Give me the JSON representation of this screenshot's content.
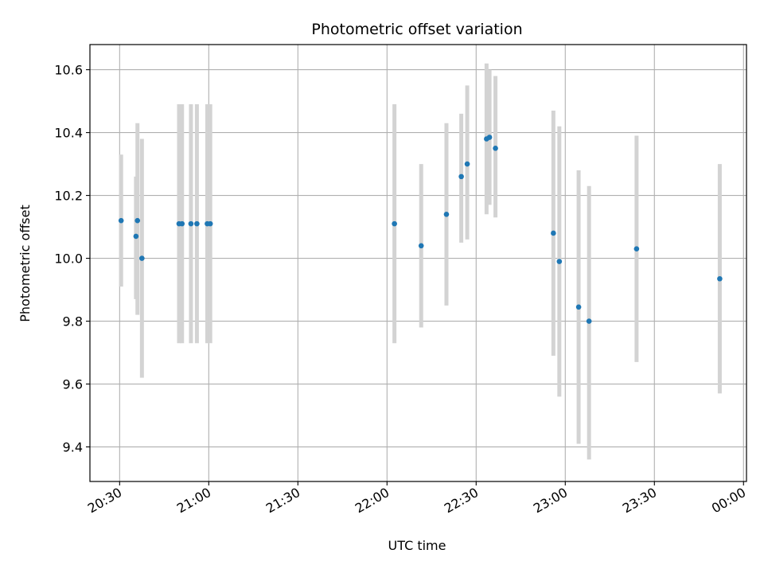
{
  "chart_data": {
    "type": "scatter",
    "title": "Photometric offset variation",
    "xlabel": "UTC time",
    "ylabel": "Photometric offset",
    "x_unit": "UTC time (HH:MM)",
    "xlim": [
      "20:20",
      "00:01"
    ],
    "ylim": [
      9.29,
      10.68
    ],
    "grid": true,
    "x_ticks": [
      "20:30",
      "21:00",
      "21:30",
      "22:00",
      "22:30",
      "23:00",
      "23:30",
      "00:00"
    ],
    "y_ticks": [
      "9.4",
      "9.6",
      "9.8",
      "10.0",
      "10.2",
      "10.4",
      "10.6"
    ],
    "marker_color": "#1f77b4",
    "errorbar_color": "#d3d3d3",
    "points": [
      {
        "x": "20:30:30",
        "y": 10.12,
        "ylow": 9.91,
        "yhigh": 10.33
      },
      {
        "x": "20:35:30",
        "y": 10.07,
        "ylow": 9.87,
        "yhigh": 10.26
      },
      {
        "x": "20:36:00",
        "y": 10.12,
        "ylow": 9.82,
        "yhigh": 10.43
      },
      {
        "x": "20:37:30",
        "y": 10.0,
        "ylow": 9.62,
        "yhigh": 10.38
      },
      {
        "x": "20:50:00",
        "y": 10.11,
        "ylow": 9.73,
        "yhigh": 10.49
      },
      {
        "x": "20:51:00",
        "y": 10.11,
        "ylow": 9.73,
        "yhigh": 10.49
      },
      {
        "x": "20:54:00",
        "y": 10.11,
        "ylow": 9.73,
        "yhigh": 10.49
      },
      {
        "x": "20:56:00",
        "y": 10.11,
        "ylow": 9.73,
        "yhigh": 10.49
      },
      {
        "x": "20:59:30",
        "y": 10.11,
        "ylow": 9.73,
        "yhigh": 10.49
      },
      {
        "x": "21:00:30",
        "y": 10.11,
        "ylow": 9.73,
        "yhigh": 10.49
      },
      {
        "x": "22:02:30",
        "y": 10.11,
        "ylow": 9.73,
        "yhigh": 10.49
      },
      {
        "x": "22:11:30",
        "y": 10.04,
        "ylow": 9.78,
        "yhigh": 10.3
      },
      {
        "x": "22:20:00",
        "y": 10.14,
        "ylow": 9.85,
        "yhigh": 10.43
      },
      {
        "x": "22:25:00",
        "y": 10.26,
        "ylow": 10.05,
        "yhigh": 10.46
      },
      {
        "x": "22:27:00",
        "y": 10.3,
        "ylow": 10.06,
        "yhigh": 10.55
      },
      {
        "x": "22:33:30",
        "y": 10.38,
        "ylow": 10.14,
        "yhigh": 10.62
      },
      {
        "x": "22:34:30",
        "y": 10.385,
        "ylow": 10.17,
        "yhigh": 10.6
      },
      {
        "x": "22:36:30",
        "y": 10.35,
        "ylow": 10.13,
        "yhigh": 10.58
      },
      {
        "x": "22:56:00",
        "y": 10.08,
        "ylow": 9.69,
        "yhigh": 10.47
      },
      {
        "x": "22:58:00",
        "y": 9.99,
        "ylow": 9.56,
        "yhigh": 10.42
      },
      {
        "x": "23:04:30",
        "y": 9.845,
        "ylow": 9.41,
        "yhigh": 10.28
      },
      {
        "x": "23:08:00",
        "y": 9.8,
        "ylow": 9.36,
        "yhigh": 10.23
      },
      {
        "x": "23:24:00",
        "y": 10.03,
        "ylow": 9.67,
        "yhigh": 10.39
      },
      {
        "x": "23:52:00",
        "y": 9.935,
        "ylow": 9.57,
        "yhigh": 10.3
      }
    ]
  }
}
